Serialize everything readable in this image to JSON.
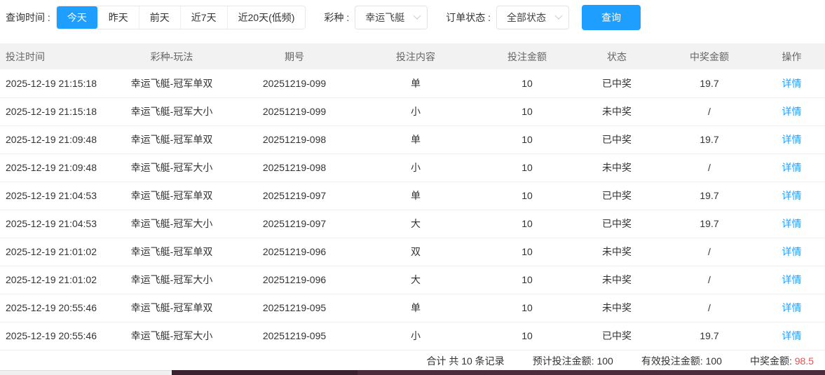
{
  "colors": {
    "accent": "#1e9fff",
    "win_red": "#f34b4b"
  },
  "filters": {
    "time_label": "查询时间 :",
    "time_options": [
      "今天",
      "昨天",
      "前天",
      "近7天",
      "近20天(低频)"
    ],
    "active_time": "今天",
    "lottery_label": "彩种 :",
    "lottery_value": "幸运飞艇",
    "status_label": "订单状态 :",
    "status_value": "全部状态",
    "query_label": "查询"
  },
  "table": {
    "headers": [
      "投注时间",
      "彩种-玩法",
      "期号",
      "投注内容",
      "投注金额",
      "状态",
      "中奖金额",
      "操作"
    ],
    "action_label": "详情",
    "rows": [
      {
        "time": "2025-12-19 21:15:18",
        "play": "幸运飞艇-冠军单双",
        "issue": "20251219-099",
        "content": "单",
        "amount": "10",
        "status": "已中奖",
        "won": true,
        "prize": "19.7"
      },
      {
        "time": "2025-12-19 21:15:18",
        "play": "幸运飞艇-冠军大小",
        "issue": "20251219-099",
        "content": "小",
        "amount": "10",
        "status": "未中奖",
        "won": false,
        "prize": "/"
      },
      {
        "time": "2025-12-19 21:09:48",
        "play": "幸运飞艇-冠军单双",
        "issue": "20251219-098",
        "content": "单",
        "amount": "10",
        "status": "已中奖",
        "won": true,
        "prize": "19.7"
      },
      {
        "time": "2025-12-19 21:09:48",
        "play": "幸运飞艇-冠军大小",
        "issue": "20251219-098",
        "content": "小",
        "amount": "10",
        "status": "未中奖",
        "won": false,
        "prize": "/"
      },
      {
        "time": "2025-12-19 21:04:53",
        "play": "幸运飞艇-冠军单双",
        "issue": "20251219-097",
        "content": "单",
        "amount": "10",
        "status": "已中奖",
        "won": true,
        "prize": "19.7"
      },
      {
        "time": "2025-12-19 21:04:53",
        "play": "幸运飞艇-冠军大小",
        "issue": "20251219-097",
        "content": "大",
        "amount": "10",
        "status": "已中奖",
        "won": true,
        "prize": "19.7"
      },
      {
        "time": "2025-12-19 21:01:02",
        "play": "幸运飞艇-冠军单双",
        "issue": "20251219-096",
        "content": "双",
        "amount": "10",
        "status": "未中奖",
        "won": false,
        "prize": "/"
      },
      {
        "time": "2025-12-19 21:01:02",
        "play": "幸运飞艇-冠军大小",
        "issue": "20251219-096",
        "content": "大",
        "amount": "10",
        "status": "未中奖",
        "won": false,
        "prize": "/"
      },
      {
        "time": "2025-12-19 20:55:46",
        "play": "幸运飞艇-冠军单双",
        "issue": "20251219-095",
        "content": "单",
        "amount": "10",
        "status": "未中奖",
        "won": false,
        "prize": "/"
      },
      {
        "time": "2025-12-19 20:55:46",
        "play": "幸运飞艇-冠军大小",
        "issue": "20251219-095",
        "content": "小",
        "amount": "10",
        "status": "已中奖",
        "won": true,
        "prize": "19.7"
      }
    ]
  },
  "summary": {
    "total_text": "合计 共 10 条记录",
    "expected_label": "预计投注金额:",
    "expected_value": "100",
    "valid_label": "有效投注金额:",
    "valid_value": "100",
    "prize_label": "中奖金额:",
    "prize_value": "98.5"
  }
}
